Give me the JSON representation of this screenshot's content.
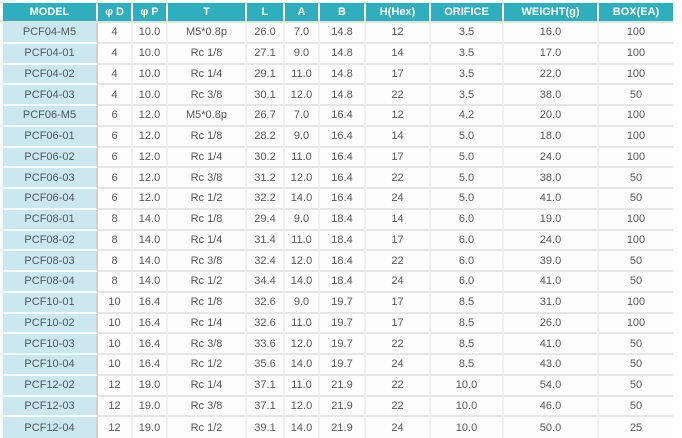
{
  "colors": {
    "header_bg": "#31aebe",
    "header_text": "#ffffff",
    "model_bg": "#cbe7f0",
    "model_text": "#4e5a61",
    "cell_text": "#58595b"
  },
  "chart_data": {
    "type": "table",
    "title": "PCF fitting specification table",
    "columns": [
      {
        "key": "model",
        "label": "MODEL"
      },
      {
        "key": "d",
        "label": "φ D"
      },
      {
        "key": "p",
        "label": "φ P"
      },
      {
        "key": "t",
        "label": "T"
      },
      {
        "key": "l",
        "label": "L"
      },
      {
        "key": "a",
        "label": "A"
      },
      {
        "key": "b",
        "label": "B"
      },
      {
        "key": "hex",
        "label": "H(Hex)"
      },
      {
        "key": "orifice",
        "label": "ORIFICE"
      },
      {
        "key": "weight",
        "label": "WEIGHT(g)"
      },
      {
        "key": "box",
        "label": "BOX(EA)"
      }
    ],
    "rows": [
      [
        "PCF04-M5",
        "4",
        "10.0",
        "M5*0.8p",
        "26.0",
        "7.0",
        "14.8",
        "12",
        "3.5",
        "16.0",
        "100"
      ],
      [
        "PCF04-01",
        "4",
        "10.0",
        "Rc 1/8",
        "27.1",
        "9.0",
        "14.8",
        "14",
        "3.5",
        "17.0",
        "100"
      ],
      [
        "PCF04-02",
        "4",
        "10.0",
        "Rc 1/4",
        "29.1",
        "11.0",
        "14.8",
        "17",
        "3.5",
        "22.0",
        "100"
      ],
      [
        "PCF04-03",
        "4",
        "10.0",
        "Rc 3/8",
        "30.1",
        "12.0",
        "14.8",
        "22",
        "3.5",
        "38.0",
        "50"
      ],
      [
        "PCF06-M5",
        "6",
        "12.0",
        "M5*0.8p",
        "26.7",
        "7.0",
        "16.4",
        "12",
        "4.2",
        "20.0",
        "100"
      ],
      [
        "PCF06-01",
        "6",
        "12.0",
        "Rc 1/8",
        "28.2",
        "9.0",
        "16.4",
        "14",
        "5.0",
        "18.0",
        "100"
      ],
      [
        "PCF06-02",
        "6",
        "12.0",
        "Rc 1/4",
        "30.2",
        "11.0",
        "16.4",
        "17",
        "5.0",
        "24.0",
        "100"
      ],
      [
        "PCF06-03",
        "6",
        "12.0",
        "Rc 3/8",
        "31.2",
        "12.0",
        "16.4",
        "22",
        "5.0",
        "38.0",
        "50"
      ],
      [
        "PCF06-04",
        "6",
        "12.0",
        "Rc 1/2",
        "32.2",
        "14.0",
        "16.4",
        "24",
        "5.0",
        "41.0",
        "50"
      ],
      [
        "PCF08-01",
        "8",
        "14.0",
        "Rc 1/8",
        "29.4",
        "9.0",
        "18.4",
        "14",
        "6.0",
        "19.0",
        "100"
      ],
      [
        "PCF08-02",
        "8",
        "14.0",
        "Rc 1/4",
        "31.4",
        "11.0",
        "18.4",
        "17",
        "6.0",
        "24.0",
        "100"
      ],
      [
        "PCF08-03",
        "8",
        "14.0",
        "Rc 3/8",
        "32.4",
        "12.0",
        "18.4",
        "22",
        "6.0",
        "39.0",
        "50"
      ],
      [
        "PCF08-04",
        "8",
        "14.0",
        "Rc 1/2",
        "34.4",
        "14.0",
        "18.4",
        "24",
        "6.0",
        "41.0",
        "50"
      ],
      [
        "PCF10-01",
        "10",
        "16.4",
        "Rc 1/8",
        "32.6",
        "9.0",
        "19.7",
        "17",
        "8.5",
        "31.0",
        "100"
      ],
      [
        "PCF10-02",
        "10",
        "16.4",
        "Rc 1/4",
        "32.6",
        "11.0",
        "19.7",
        "17",
        "8.5",
        "26.0",
        "100"
      ],
      [
        "PCF10-03",
        "10",
        "16.4",
        "Rc 3/8",
        "33.6",
        "12.0",
        "19.7",
        "22",
        "8.5",
        "41.0",
        "50"
      ],
      [
        "PCF10-04",
        "10",
        "16.4",
        "Rc 1/2",
        "35.6",
        "14.0",
        "19.7",
        "24",
        "8.5",
        "43.0",
        "50"
      ],
      [
        "PCF12-02",
        "12",
        "19.0",
        "Rc 1/4",
        "37.1",
        "11.0",
        "21.9",
        "22",
        "10.0",
        "54.0",
        "50"
      ],
      [
        "PCF12-03",
        "12",
        "19.0",
        "Rc 3/8",
        "37.1",
        "12.0",
        "21.9",
        "22",
        "10.0",
        "46.0",
        "50"
      ],
      [
        "PCF12-04",
        "12",
        "19.0",
        "Rc 1/2",
        "39.1",
        "14.0",
        "21.9",
        "24",
        "10.0",
        "50.0",
        "25"
      ]
    ]
  }
}
